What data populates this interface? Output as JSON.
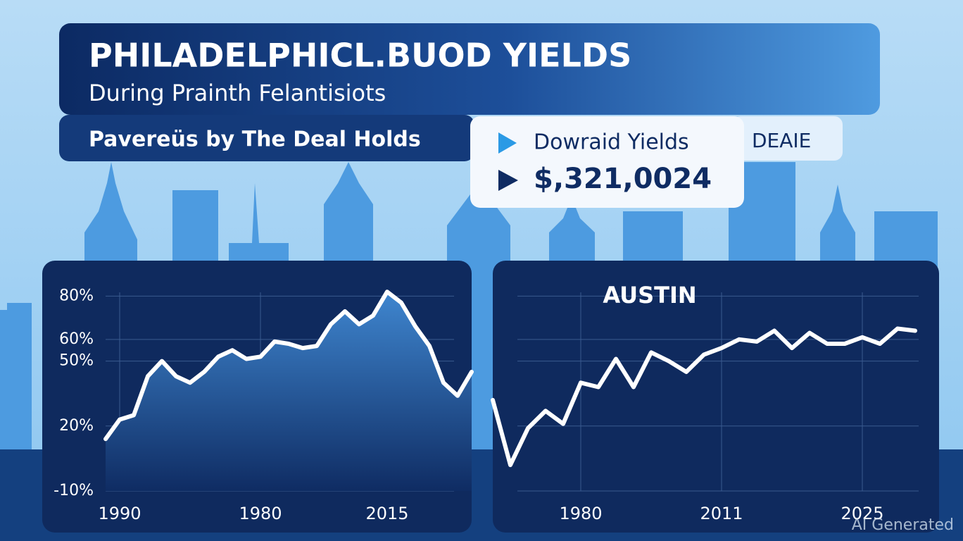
{
  "header": {
    "title": "PHILADELPHICL.BUOD YIELDS",
    "subtitle": "During Prainth Felantisiots",
    "tagline": "Pavereüs by The Deal Holds"
  },
  "card": {
    "label": "Dowraid Yields",
    "value": "$,321,0024",
    "badge": "DEAIE"
  },
  "watermark": "AI Generated",
  "chart_data": [
    {
      "type": "line",
      "area": true,
      "color": "#ffffff",
      "grid": true,
      "categories": [
        null,
        "1990",
        null,
        null,
        null,
        null,
        null,
        null,
        null,
        null,
        null,
        "1980",
        null,
        null,
        null,
        null,
        null,
        null,
        null,
        null,
        "2015",
        null,
        null,
        null,
        null,
        null,
        null
      ],
      "values": [
        14,
        23,
        25,
        43,
        50,
        43,
        40,
        45,
        52,
        55,
        51,
        52,
        59,
        58,
        56,
        57,
        67,
        73,
        67,
        71,
        82,
        77,
        66,
        57,
        40,
        34,
        45
      ],
      "ylim": [
        -10,
        85
      ],
      "yticks": [
        {
          "value": 80,
          "label": "80%"
        },
        {
          "value": 60,
          "label": "60%"
        },
        {
          "value": 50,
          "label": "50%"
        },
        {
          "value": 20,
          "label": "20%"
        },
        {
          "value": -10,
          "label": "-10%"
        }
      ]
    },
    {
      "type": "line",
      "area": false,
      "color": "#ffffff",
      "grid": true,
      "title": "AUSTIN",
      "categories": [
        null,
        null,
        null,
        null,
        null,
        "1980",
        null,
        null,
        null,
        null,
        null,
        null,
        null,
        "2011",
        null,
        null,
        null,
        null,
        null,
        null,
        null,
        "2025",
        null,
        null,
        null
      ],
      "values": [
        32,
        2,
        19,
        27,
        21,
        40,
        38,
        51,
        38,
        54,
        50,
        45,
        53,
        56,
        60,
        59,
        64,
        56,
        63,
        58,
        58,
        61,
        58,
        65,
        64
      ],
      "ylim": [
        -10,
        85
      ]
    }
  ]
}
